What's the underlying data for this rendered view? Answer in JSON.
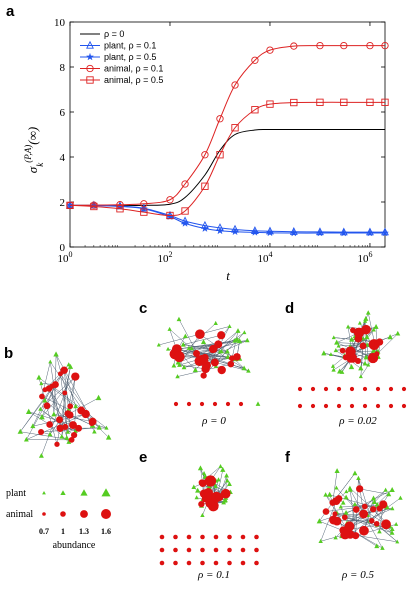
{
  "chart_data": [
    {
      "type": "line",
      "panel": "a",
      "xlabel": "t",
      "ylabel": "σ_k^(P,A)(∞)",
      "xscale": "log",
      "xlim": [
        1,
        2000000
      ],
      "ylim": [
        0,
        10
      ],
      "x_ticks": [
        "10^0",
        "10^2",
        "10^4",
        "10^6"
      ],
      "y_ticks": [
        "0",
        "2",
        "4",
        "6",
        "8",
        "10"
      ],
      "grid": false,
      "legend_position": "top-left",
      "x": [
        1,
        3,
        10,
        30,
        100,
        200,
        500,
        1000,
        2000,
        5000,
        10000,
        30000,
        100000,
        300000,
        1000000,
        2000000
      ],
      "series": [
        {
          "name": "ρ = 0",
          "color": "#000000",
          "marker": "none",
          "values": [
            1.85,
            1.85,
            1.85,
            1.85,
            1.9,
            2.2,
            3.2,
            4.3,
            5.0,
            5.2,
            5.22,
            5.22,
            5.22,
            5.22,
            5.22,
            5.22
          ]
        },
        {
          "name": "plant,  ρ = 0.1",
          "color": "#2255ee",
          "marker": "triangle",
          "values": [
            1.85,
            1.85,
            1.82,
            1.72,
            1.4,
            1.15,
            0.95,
            0.85,
            0.78,
            0.72,
            0.7,
            0.68,
            0.67,
            0.66,
            0.66,
            0.66
          ]
        },
        {
          "name": "plant,  ρ = 0.5",
          "color": "#2255ee",
          "marker": "star",
          "values": [
            1.85,
            1.84,
            1.8,
            1.7,
            1.35,
            1.05,
            0.82,
            0.72,
            0.68,
            0.65,
            0.63,
            0.62,
            0.62,
            0.62,
            0.62,
            0.62
          ]
        },
        {
          "name": "animal,  ρ = 0.1",
          "color": "#dd2222",
          "marker": "circle",
          "values": [
            1.85,
            1.86,
            1.88,
            1.92,
            2.1,
            2.8,
            4.1,
            5.7,
            7.2,
            8.3,
            8.75,
            8.93,
            8.95,
            8.95,
            8.95,
            8.95
          ]
        },
        {
          "name": "animal,  ρ = 0.5",
          "color": "#dd2222",
          "marker": "square",
          "values": [
            1.85,
            1.8,
            1.7,
            1.55,
            1.4,
            1.6,
            2.7,
            4.1,
            5.3,
            6.1,
            6.35,
            6.42,
            6.43,
            6.43,
            6.43,
            6.43
          ]
        }
      ],
      "marker_x": [
        1,
        3,
        10,
        30,
        100,
        200,
        500,
        1000,
        2000,
        5000,
        10000,
        30000,
        100000,
        300000,
        1000000,
        2000000
      ]
    }
  ],
  "panels": {
    "a": "a",
    "b": "b",
    "c": "c",
    "d": "d",
    "e": "e",
    "f": "f"
  },
  "captions": {
    "c": "ρ = 0",
    "d": "ρ = 0.02",
    "e": "ρ = 0.1",
    "f": "ρ = 0.5"
  },
  "key": {
    "plant_label": "plant",
    "animal_label": "animal",
    "abundance_label": "abundance",
    "values": [
      "0.7",
      "1",
      "1.3",
      "1.6"
    ]
  },
  "colors": {
    "plant": "#55cc22",
    "animal": "#dd1111",
    "edge": "#556677",
    "plant_line": "#2255ee",
    "animal_line": "#dd2222"
  }
}
